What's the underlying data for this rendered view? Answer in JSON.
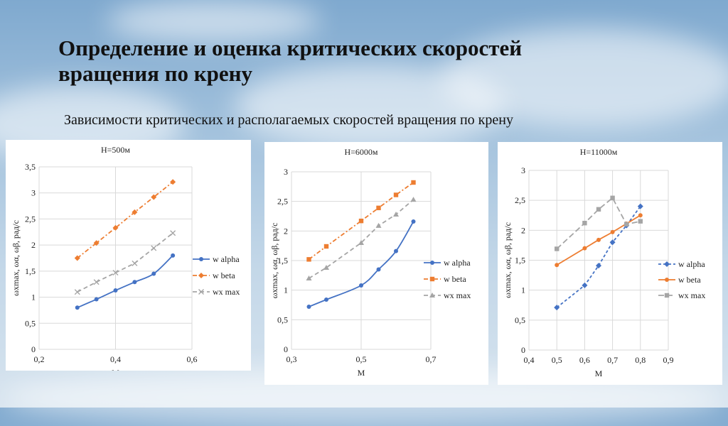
{
  "slide": {
    "title": "Определение и оценка критических скоростей вращения по крену",
    "subtitle": "Зависимости критических и располагаемых скоростей вращения по крену"
  },
  "chart_data": [
    {
      "type": "line",
      "title": "H=500м",
      "xlabel": "M",
      "ylabel": "ωxmax, ωα, ωβ, рад/с",
      "xlim": [
        0.2,
        0.6
      ],
      "ylim": [
        0,
        3.5
      ],
      "xticks": [
        "0,2",
        "0,4",
        "0,6"
      ],
      "yticks": [
        "0",
        "0,5",
        "1",
        "1,5",
        "2",
        "2,5",
        "3",
        "3,5"
      ],
      "legend": "right",
      "series": [
        {
          "name": "w alpha",
          "color": "#4472c4",
          "dash": "",
          "marker": "circle",
          "x": [
            0.3,
            0.35,
            0.4,
            0.45,
            0.5,
            0.55
          ],
          "y": [
            0.8,
            0.96,
            1.13,
            1.29,
            1.45,
            1.8
          ]
        },
        {
          "name": "w beta",
          "color": "#ed7d31",
          "dash": "6 3 2 3",
          "marker": "diamond",
          "x": [
            0.3,
            0.35,
            0.4,
            0.45,
            0.5,
            0.55
          ],
          "y": [
            1.75,
            2.04,
            2.33,
            2.63,
            2.92,
            3.21
          ]
        },
        {
          "name": "wx max",
          "color": "#a5a5a5",
          "dash": "6 4",
          "marker": "x",
          "x": [
            0.3,
            0.35,
            0.4,
            0.45,
            0.5,
            0.55
          ],
          "y": [
            1.1,
            1.29,
            1.47,
            1.65,
            1.94,
            2.23
          ]
        }
      ]
    },
    {
      "type": "line",
      "title": "H=6000м",
      "xlabel": "M",
      "ylabel": "ωxmax, ωα, ωβ, рад/с",
      "xlim": [
        0.3,
        0.7
      ],
      "ylim": [
        0,
        3
      ],
      "xticks": [
        "0,3",
        "0,5",
        "0,7"
      ],
      "yticks": [
        "0",
        "0,5",
        "1",
        "1,5",
        "2",
        "2,5",
        "3"
      ],
      "legend": "right",
      "series": [
        {
          "name": "w alpha",
          "color": "#4472c4",
          "dash": "",
          "marker": "circle",
          "x": [
            0.35,
            0.4,
            0.5,
            0.55,
            0.6,
            0.65
          ],
          "y": [
            0.72,
            0.84,
            1.08,
            1.35,
            1.66,
            2.16
          ]
        },
        {
          "name": "w beta",
          "color": "#ed7d31",
          "dash": "6 3 2 3",
          "marker": "square",
          "x": [
            0.35,
            0.4,
            0.5,
            0.55,
            0.6,
            0.65
          ],
          "y": [
            1.52,
            1.74,
            2.17,
            2.39,
            2.61,
            2.82
          ]
        },
        {
          "name": "wx max",
          "color": "#a5a5a5",
          "dash": "6 4",
          "marker": "triangle",
          "x": [
            0.35,
            0.4,
            0.5,
            0.55,
            0.6,
            0.65
          ],
          "y": [
            1.2,
            1.38,
            1.8,
            2.09,
            2.28,
            2.53
          ]
        }
      ]
    },
    {
      "type": "line",
      "title": "H=11000м",
      "xlabel": "M",
      "ylabel": "ωxmax, ωα, ωβ, рад/с",
      "xlim": [
        0.4,
        0.9
      ],
      "ylim": [
        0,
        3
      ],
      "xticks": [
        "0,4",
        "0,5",
        "0,6",
        "0,7",
        "0,8",
        "0,9"
      ],
      "yticks": [
        "0",
        "0,5",
        "1",
        "1,5",
        "2",
        "2,5",
        "3"
      ],
      "legend": "right",
      "series": [
        {
          "name": "w alpha",
          "color": "#4472c4",
          "dash": "4 3",
          "marker": "diamond",
          "x": [
            0.5,
            0.6,
            0.65,
            0.7,
            0.75,
            0.8
          ],
          "y": [
            0.71,
            1.08,
            1.41,
            1.8,
            2.08,
            2.4
          ]
        },
        {
          "name": "w beta",
          "color": "#ed7d31",
          "dash": "",
          "marker": "circle",
          "x": [
            0.5,
            0.6,
            0.65,
            0.7,
            0.75,
            0.8
          ],
          "y": [
            1.42,
            1.7,
            1.84,
            1.97,
            2.11,
            2.25
          ]
        },
        {
          "name": "wx max",
          "color": "#a5a5a5",
          "dash": "8 4",
          "marker": "square",
          "x": [
            0.5,
            0.6,
            0.65,
            0.7,
            0.75,
            0.8
          ],
          "y": [
            1.69,
            2.12,
            2.35,
            2.54,
            2.1,
            2.15
          ]
        }
      ]
    }
  ]
}
